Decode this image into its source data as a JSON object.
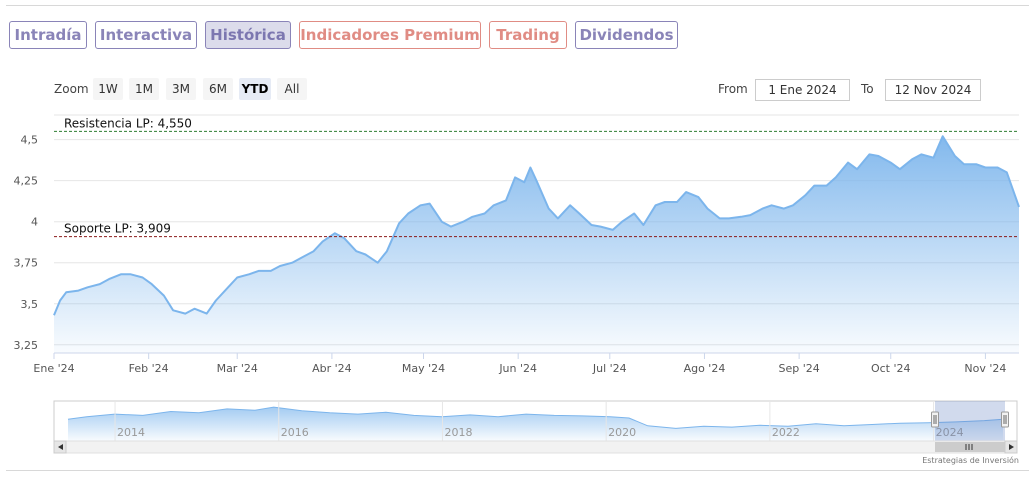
{
  "tabs": [
    {
      "label": "Intradía",
      "style": "normal"
    },
    {
      "label": "Interactiva",
      "style": "normal"
    },
    {
      "label": "Histórica",
      "style": "active"
    },
    {
      "label": "Indicadores Premium",
      "style": "premium"
    },
    {
      "label": "Trading",
      "style": "premium"
    },
    {
      "label": "Dividendos",
      "style": "normal"
    }
  ],
  "range_selector": {
    "zoom_label": "Zoom",
    "buttons": [
      "1W",
      "1M",
      "3M",
      "6M",
      "YTD",
      "All"
    ],
    "selected": "YTD",
    "from_label": "From",
    "from_value": "1 Ene 2024",
    "to_label": "To",
    "to_value": "12 Nov 2024"
  },
  "colors": {
    "tab": "#8a84b8",
    "tab_premium": "#e08c84",
    "series_line": "#7cb5ec",
    "resistance_line": "#2e7d32",
    "support_line": "#8b1a1a"
  },
  "credits": "Estrategias de Inversión",
  "chart_data": {
    "type": "area",
    "x_type": "date",
    "xlim": [
      "2024-01-01",
      "2024-11-12"
    ],
    "ylim": [
      3.2,
      4.65
    ],
    "yticks": [
      3.25,
      3.5,
      3.75,
      4,
      4.25,
      4.5
    ],
    "ytick_labels": [
      "3,25",
      "3,5",
      "3,75",
      "4",
      "4,25",
      "4,5"
    ],
    "xticks": [
      "2024-01-01",
      "2024-02-01",
      "2024-03-01",
      "2024-04-01",
      "2024-05-01",
      "2024-06-01",
      "2024-07-01",
      "2024-08-01",
      "2024-09-01",
      "2024-10-01",
      "2024-11-01"
    ],
    "xtick_labels": [
      "Ene '24",
      "Feb '24",
      "Mar '24",
      "Abr '24",
      "May '24",
      "Jun '24",
      "Jul '24",
      "Ago '24",
      "Sep '24",
      "Oct '24",
      "Nov '24"
    ],
    "grid": true,
    "series": [
      {
        "x": [
          "2024-01-01",
          "2024-01-03",
          "2024-01-05",
          "2024-01-09",
          "2024-01-12",
          "2024-01-16",
          "2024-01-19",
          "2024-01-23",
          "2024-01-26",
          "2024-01-30",
          "2024-02-02",
          "2024-02-06",
          "2024-02-09",
          "2024-02-13",
          "2024-02-16",
          "2024-02-20",
          "2024-02-23",
          "2024-02-27",
          "2024-03-01",
          "2024-03-05",
          "2024-03-08",
          "2024-03-12",
          "2024-03-15",
          "2024-03-19",
          "2024-03-22",
          "2024-03-26",
          "2024-03-29",
          "2024-04-02",
          "2024-04-05",
          "2024-04-09",
          "2024-04-12",
          "2024-04-16",
          "2024-04-19",
          "2024-04-23",
          "2024-04-26",
          "2024-04-30",
          "2024-05-03",
          "2024-05-07",
          "2024-05-10",
          "2024-05-14",
          "2024-05-17",
          "2024-05-21",
          "2024-05-24",
          "2024-05-28",
          "2024-05-31",
          "2024-06-03",
          "2024-06-05",
          "2024-06-07",
          "2024-06-11",
          "2024-06-14",
          "2024-06-18",
          "2024-06-21",
          "2024-06-25",
          "2024-06-28",
          "2024-07-02",
          "2024-07-05",
          "2024-07-09",
          "2024-07-12",
          "2024-07-16",
          "2024-07-19",
          "2024-07-23",
          "2024-07-26",
          "2024-07-30",
          "2024-08-02",
          "2024-08-06",
          "2024-08-09",
          "2024-08-13",
          "2024-08-16",
          "2024-08-20",
          "2024-08-23",
          "2024-08-27",
          "2024-08-30",
          "2024-09-03",
          "2024-09-06",
          "2024-09-10",
          "2024-09-13",
          "2024-09-17",
          "2024-09-20",
          "2024-09-24",
          "2024-09-27",
          "2024-10-01",
          "2024-10-04",
          "2024-10-08",
          "2024-10-11",
          "2024-10-15",
          "2024-10-18",
          "2024-10-22",
          "2024-10-25",
          "2024-10-29",
          "2024-11-01",
          "2024-11-05",
          "2024-11-08",
          "2024-11-12"
        ],
        "y": [
          3.43,
          3.52,
          3.57,
          3.58,
          3.6,
          3.62,
          3.65,
          3.68,
          3.68,
          3.66,
          3.62,
          3.55,
          3.46,
          3.44,
          3.47,
          3.44,
          3.52,
          3.6,
          3.66,
          3.68,
          3.7,
          3.7,
          3.73,
          3.75,
          3.78,
          3.82,
          3.88,
          3.93,
          3.9,
          3.82,
          3.8,
          3.75,
          3.82,
          3.99,
          4.05,
          4.1,
          4.11,
          4.0,
          3.97,
          4.0,
          4.03,
          4.05,
          4.1,
          4.13,
          4.27,
          4.24,
          4.33,
          4.25,
          4.08,
          4.02,
          4.1,
          4.05,
          3.98,
          3.97,
          3.95,
          4.0,
          4.05,
          3.98,
          4.1,
          4.12,
          4.12,
          4.18,
          4.15,
          4.08,
          4.02,
          4.02,
          4.03,
          4.04,
          4.08,
          4.1,
          4.08,
          4.1,
          4.16,
          4.22,
          4.22,
          4.27,
          4.36,
          4.32,
          4.41,
          4.4,
          4.36,
          4.32,
          4.38,
          4.41,
          4.39,
          4.52,
          4.4,
          4.35,
          4.35,
          4.33,
          4.33,
          4.3,
          4.09
        ]
      }
    ],
    "annotations": [
      {
        "label": "Resistencia LP: 4,550",
        "y": 4.55,
        "style": "dashed",
        "color": "#2e7d32"
      },
      {
        "label": "Soporte LP: 3,909",
        "y": 3.909,
        "style": "dashed",
        "color": "#8b1a1a"
      }
    ],
    "navigator": {
      "xtick_labels": [
        "2014",
        "2016",
        "2018",
        "2020",
        "2022",
        "2024"
      ],
      "selected_range": [
        "2024-01-01",
        "2024-11-12"
      ]
    }
  }
}
